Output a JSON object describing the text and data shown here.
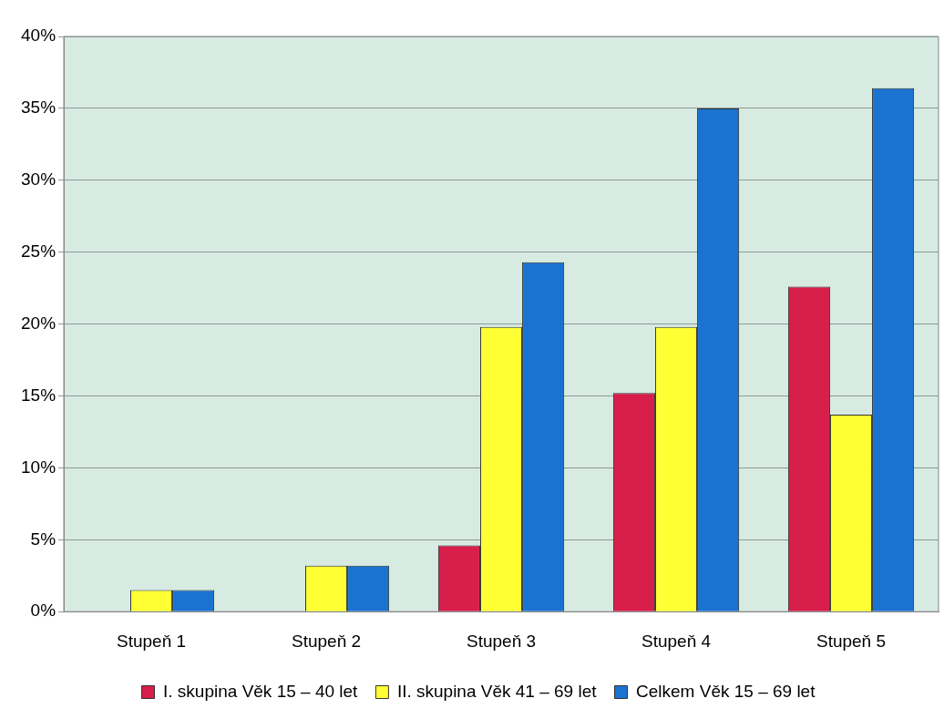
{
  "chart_data": {
    "type": "bar",
    "categories": [
      "Stupeň 1",
      "Stupeň 2",
      "Stupeň 3",
      "Stupeň 4",
      "Stupeň 5"
    ],
    "series": [
      {
        "name": "I. skupina Věk 15 – 40 let",
        "color": "#d81e4a",
        "values": [
          0,
          0,
          4.6,
          15.2,
          22.6
        ]
      },
      {
        "name": "II. skupina Věk 41 – 69 let",
        "color": "#ffff33",
        "values": [
          1.5,
          3.2,
          19.8,
          19.8,
          13.7
        ]
      },
      {
        "name": "Celkem Věk 15 – 69 let",
        "color": "#1a73d0",
        "values": [
          1.5,
          3.2,
          24.3,
          35.0,
          36.4
        ]
      }
    ],
    "ylim": [
      0,
      40
    ],
    "yticks": [
      {
        "value": 0,
        "label": "0%"
      },
      {
        "value": 5,
        "label": "5%"
      },
      {
        "value": 10,
        "label": "10%"
      },
      {
        "value": 15,
        "label": "15%"
      },
      {
        "value": 20,
        "label": "20%"
      },
      {
        "value": 25,
        "label": "25%"
      },
      {
        "value": 30,
        "label": "30%"
      },
      {
        "value": 35,
        "label": "35%"
      },
      {
        "value": 40,
        "label": "40%"
      }
    ],
    "grid": "y",
    "legend": "bottom"
  }
}
